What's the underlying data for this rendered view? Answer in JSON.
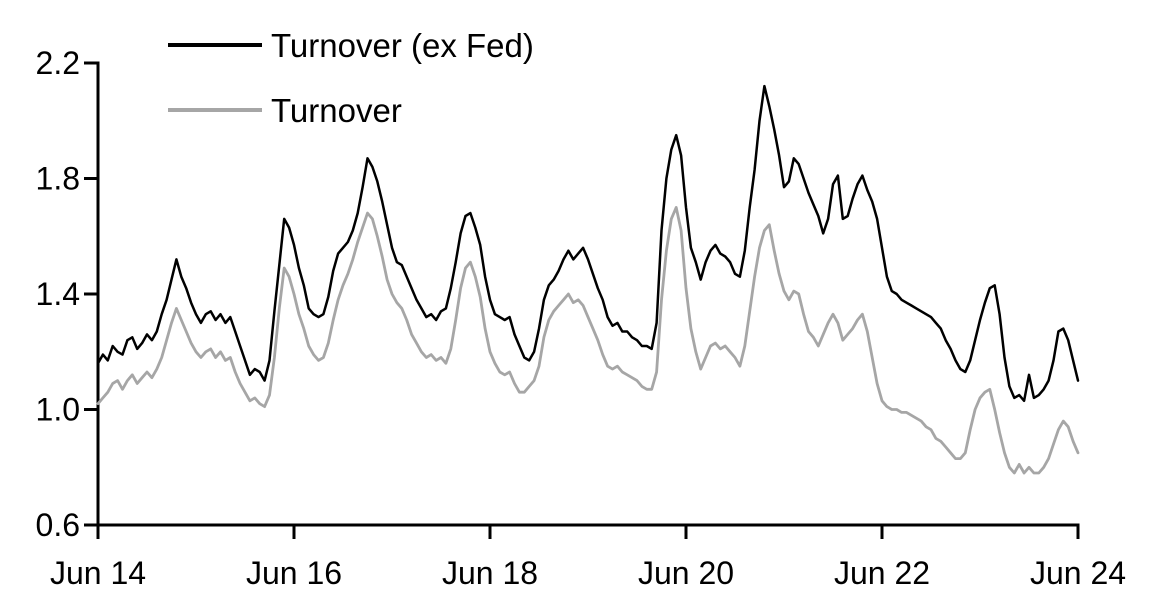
{
  "page": {
    "background": "#ffffff",
    "axis_color": "#000000"
  },
  "chart_data": {
    "type": "line",
    "title": "",
    "xlabel": "",
    "ylabel": "",
    "grid": false,
    "legend_position": "top-left",
    "x_axis": {
      "range": [
        2014.45,
        2024.45
      ],
      "ticks": [
        {
          "label": "Jun 14",
          "x": 2014.45
        },
        {
          "label": "Jun 16",
          "x": 2016.45
        },
        {
          "label": "Jun 18",
          "x": 2018.45
        },
        {
          "label": "Jun 20",
          "x": 2020.45
        },
        {
          "label": "Jun 22",
          "x": 2022.45
        },
        {
          "label": "Jun 24",
          "x": 2024.45
        }
      ]
    },
    "y_axis": {
      "range": [
        0.6,
        2.2
      ],
      "ticks": [
        {
          "label": "0.6",
          "v": 0.6
        },
        {
          "label": "1.0",
          "v": 1.0
        },
        {
          "label": "1.4",
          "v": 1.4
        },
        {
          "label": "1.8",
          "v": 1.8
        },
        {
          "label": "2.2",
          "v": 2.2
        }
      ]
    },
    "series": [
      {
        "name": "Turnover (ex Fed)",
        "color": "#000000",
        "stroke_width": 2.5,
        "x_start": 2014.45,
        "x_step": 0.05,
        "values": [
          1.16,
          1.19,
          1.17,
          1.22,
          1.2,
          1.19,
          1.24,
          1.25,
          1.21,
          1.23,
          1.26,
          1.24,
          1.27,
          1.33,
          1.38,
          1.45,
          1.52,
          1.46,
          1.42,
          1.37,
          1.33,
          1.3,
          1.33,
          1.34,
          1.31,
          1.33,
          1.3,
          1.32,
          1.27,
          1.22,
          1.17,
          1.12,
          1.14,
          1.13,
          1.1,
          1.17,
          1.34,
          1.5,
          1.66,
          1.63,
          1.57,
          1.49,
          1.43,
          1.35,
          1.33,
          1.32,
          1.33,
          1.39,
          1.48,
          1.54,
          1.56,
          1.58,
          1.62,
          1.68,
          1.77,
          1.87,
          1.84,
          1.79,
          1.72,
          1.64,
          1.56,
          1.51,
          1.5,
          1.46,
          1.42,
          1.38,
          1.35,
          1.32,
          1.33,
          1.31,
          1.34,
          1.35,
          1.42,
          1.51,
          1.61,
          1.67,
          1.68,
          1.63,
          1.57,
          1.46,
          1.38,
          1.33,
          1.32,
          1.31,
          1.32,
          1.26,
          1.22,
          1.18,
          1.17,
          1.2,
          1.28,
          1.38,
          1.43,
          1.45,
          1.48,
          1.52,
          1.55,
          1.52,
          1.54,
          1.56,
          1.52,
          1.47,
          1.42,
          1.38,
          1.32,
          1.29,
          1.3,
          1.27,
          1.27,
          1.25,
          1.24,
          1.22,
          1.22,
          1.21,
          1.3,
          1.62,
          1.8,
          1.9,
          1.95,
          1.88,
          1.7,
          1.56,
          1.51,
          1.45,
          1.51,
          1.55,
          1.57,
          1.54,
          1.53,
          1.51,
          1.47,
          1.46,
          1.55,
          1.7,
          1.83,
          2.0,
          2.12,
          2.05,
          1.97,
          1.88,
          1.77,
          1.79,
          1.87,
          1.85,
          1.8,
          1.75,
          1.71,
          1.67,
          1.61,
          1.66,
          1.78,
          1.81,
          1.66,
          1.67,
          1.73,
          1.78,
          1.81,
          1.76,
          1.72,
          1.66,
          1.56,
          1.46,
          1.41,
          1.4,
          1.38,
          1.37,
          1.36,
          1.35,
          1.34,
          1.33,
          1.32,
          1.3,
          1.28,
          1.24,
          1.21,
          1.17,
          1.14,
          1.13,
          1.17,
          1.24,
          1.31,
          1.37,
          1.42,
          1.43,
          1.33,
          1.18,
          1.08,
          1.04,
          1.05,
          1.03,
          1.12,
          1.04,
          1.05,
          1.07,
          1.1,
          1.17,
          1.27,
          1.28,
          1.24,
          1.17,
          1.1
        ]
      },
      {
        "name": "Turnover",
        "color": "#a6a6a6",
        "stroke_width": 2.8,
        "x_start": 2014.45,
        "x_step": 0.05,
        "values": [
          1.02,
          1.04,
          1.06,
          1.09,
          1.1,
          1.07,
          1.1,
          1.12,
          1.09,
          1.11,
          1.13,
          1.11,
          1.14,
          1.18,
          1.24,
          1.3,
          1.35,
          1.31,
          1.27,
          1.23,
          1.2,
          1.18,
          1.2,
          1.21,
          1.18,
          1.2,
          1.17,
          1.18,
          1.13,
          1.09,
          1.06,
          1.03,
          1.04,
          1.02,
          1.01,
          1.05,
          1.18,
          1.35,
          1.49,
          1.46,
          1.4,
          1.33,
          1.28,
          1.22,
          1.19,
          1.17,
          1.18,
          1.23,
          1.31,
          1.38,
          1.43,
          1.47,
          1.52,
          1.58,
          1.63,
          1.68,
          1.66,
          1.6,
          1.53,
          1.45,
          1.4,
          1.37,
          1.35,
          1.31,
          1.26,
          1.23,
          1.2,
          1.18,
          1.19,
          1.17,
          1.18,
          1.16,
          1.21,
          1.31,
          1.42,
          1.49,
          1.51,
          1.46,
          1.39,
          1.28,
          1.2,
          1.16,
          1.13,
          1.12,
          1.13,
          1.09,
          1.06,
          1.06,
          1.08,
          1.1,
          1.15,
          1.25,
          1.31,
          1.34,
          1.36,
          1.38,
          1.4,
          1.37,
          1.38,
          1.36,
          1.32,
          1.28,
          1.24,
          1.19,
          1.15,
          1.14,
          1.15,
          1.13,
          1.12,
          1.11,
          1.1,
          1.08,
          1.07,
          1.07,
          1.13,
          1.38,
          1.55,
          1.66,
          1.7,
          1.62,
          1.42,
          1.28,
          1.2,
          1.14,
          1.18,
          1.22,
          1.23,
          1.21,
          1.22,
          1.2,
          1.18,
          1.15,
          1.22,
          1.34,
          1.46,
          1.56,
          1.62,
          1.64,
          1.55,
          1.47,
          1.41,
          1.38,
          1.41,
          1.4,
          1.33,
          1.27,
          1.25,
          1.22,
          1.26,
          1.3,
          1.33,
          1.3,
          1.24,
          1.26,
          1.28,
          1.31,
          1.33,
          1.27,
          1.18,
          1.09,
          1.03,
          1.01,
          1.0,
          1.0,
          0.99,
          0.99,
          0.98,
          0.97,
          0.96,
          0.94,
          0.93,
          0.9,
          0.89,
          0.87,
          0.85,
          0.83,
          0.83,
          0.85,
          0.93,
          1.0,
          1.04,
          1.06,
          1.07,
          1.0,
          0.92,
          0.85,
          0.8,
          0.78,
          0.81,
          0.78,
          0.8,
          0.78,
          0.78,
          0.8,
          0.83,
          0.88,
          0.93,
          0.96,
          0.94,
          0.89,
          0.85
        ]
      }
    ]
  }
}
